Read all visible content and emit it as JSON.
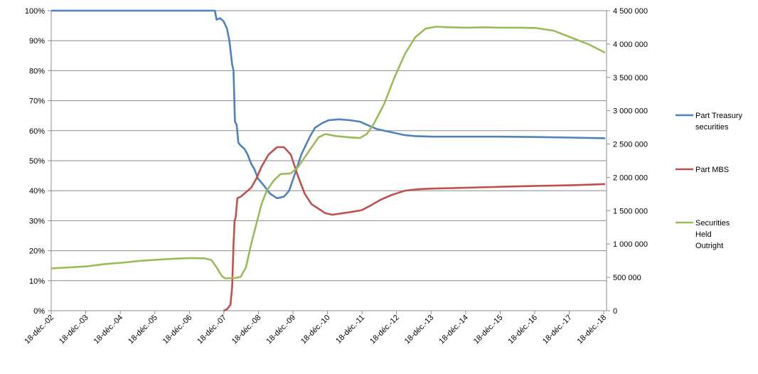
{
  "chart_data": {
    "type": "line",
    "title": "",
    "xlabel": "",
    "ylabel": "",
    "y_left": {
      "lim": [
        0,
        100
      ],
      "ticks": [
        0,
        10,
        20,
        30,
        40,
        50,
        60,
        70,
        80,
        90,
        100
      ],
      "tick_labels": [
        "0%",
        "10%",
        "20%",
        "30%",
        "40%",
        "50%",
        "60%",
        "70%",
        "80%",
        "90%",
        "100%"
      ]
    },
    "y_right": {
      "lim": [
        0,
        4500000
      ],
      "ticks": [
        0,
        500000,
        1000000,
        1500000,
        2000000,
        2500000,
        3000000,
        3500000,
        4000000,
        4500000
      ],
      "tick_labels": [
        "0",
        "500 000",
        "1 000 000",
        "1 500 000",
        "2 000 000",
        "2 500 000",
        "3 000 000",
        "3 500 000",
        "4 000 000",
        "4 500 000"
      ]
    },
    "x_axis": {
      "lim": [
        2002.96,
        2019.04
      ],
      "ticks": [
        2002.96,
        2003.96,
        2004.96,
        2005.96,
        2006.96,
        2007.96,
        2008.96,
        2009.96,
        2010.96,
        2011.96,
        2012.96,
        2013.96,
        2014.96,
        2015.96,
        2016.96,
        2017.96,
        2018.96
      ],
      "tick_labels": [
        "18-déc.-02",
        "18-déc.-03",
        "18-déc.-04",
        "18-déc.-05",
        "18-déc.-06",
        "18-déc.-07",
        "18-déc.-08",
        "18-déc.-09",
        "18-déc.-10",
        "18-déc.-11",
        "18-déc.-12",
        "18-déc.-13",
        "18-déc.-14",
        "18-déc.-15",
        "18-déc.-16",
        "18-déc.-17",
        "18-déc.-18"
      ]
    },
    "grid": "horizontal",
    "legend_position": "right",
    "series": [
      {
        "name": "Part Treasury securities",
        "axis": "left",
        "color": "#4F81BD",
        "points": [
          [
            2002.96,
            100
          ],
          [
            2007.0,
            100
          ],
          [
            2007.7,
            100
          ],
          [
            2007.75,
            97
          ],
          [
            2007.85,
            97.5
          ],
          [
            2007.95,
            96.5
          ],
          [
            2008.05,
            94
          ],
          [
            2008.12,
            90
          ],
          [
            2008.2,
            82
          ],
          [
            2008.24,
            80
          ],
          [
            2008.28,
            63
          ],
          [
            2008.33,
            62
          ],
          [
            2008.38,
            56
          ],
          [
            2008.45,
            55
          ],
          [
            2008.55,
            54
          ],
          [
            2008.65,
            52
          ],
          [
            2008.75,
            49
          ],
          [
            2008.85,
            47
          ],
          [
            2008.95,
            44
          ],
          [
            2009.1,
            42
          ],
          [
            2009.3,
            39
          ],
          [
            2009.5,
            37.5
          ],
          [
            2009.7,
            38
          ],
          [
            2009.85,
            40
          ],
          [
            2010.0,
            45
          ],
          [
            2010.2,
            52
          ],
          [
            2010.45,
            58
          ],
          [
            2010.6,
            61
          ],
          [
            2010.8,
            62.5
          ],
          [
            2011.0,
            63.5
          ],
          [
            2011.3,
            63.8
          ],
          [
            2011.6,
            63.5
          ],
          [
            2011.9,
            63
          ],
          [
            2012.1,
            62
          ],
          [
            2012.4,
            60.5
          ],
          [
            2012.8,
            59.5
          ],
          [
            2013.2,
            58.5
          ],
          [
            2013.5,
            58.2
          ],
          [
            2014.0,
            58
          ],
          [
            2015.0,
            58
          ],
          [
            2016.0,
            58
          ],
          [
            2017.0,
            57.9
          ],
          [
            2018.0,
            57.7
          ],
          [
            2019.0,
            57.5
          ]
        ]
      },
      {
        "name": "Part MBS",
        "axis": "left",
        "color": "#C0504D",
        "points": [
          [
            2007.95,
            0
          ],
          [
            2008.05,
            0.5
          ],
          [
            2008.15,
            2
          ],
          [
            2008.2,
            8
          ],
          [
            2008.24,
            22
          ],
          [
            2008.27,
            30
          ],
          [
            2008.3,
            31
          ],
          [
            2008.35,
            37.5
          ],
          [
            2008.45,
            38
          ],
          [
            2008.6,
            39.5
          ],
          [
            2008.75,
            41
          ],
          [
            2008.9,
            44
          ],
          [
            2009.05,
            48
          ],
          [
            2009.25,
            52
          ],
          [
            2009.5,
            54.5
          ],
          [
            2009.7,
            54.5
          ],
          [
            2009.9,
            52
          ],
          [
            2010.1,
            45
          ],
          [
            2010.3,
            39
          ],
          [
            2010.5,
            35.5
          ],
          [
            2010.7,
            34
          ],
          [
            2010.9,
            32.5
          ],
          [
            2011.1,
            32
          ],
          [
            2011.4,
            32.5
          ],
          [
            2011.7,
            33
          ],
          [
            2011.95,
            33.5
          ],
          [
            2012.2,
            35
          ],
          [
            2012.5,
            37
          ],
          [
            2012.8,
            38.5
          ],
          [
            2013.2,
            40
          ],
          [
            2013.6,
            40.5
          ],
          [
            2014.0,
            40.7
          ],
          [
            2015.0,
            41
          ],
          [
            2016.0,
            41.3
          ],
          [
            2017.0,
            41.6
          ],
          [
            2018.0,
            41.8
          ],
          [
            2019.0,
            42.2
          ]
        ]
      },
      {
        "name": "Securities Held Outright",
        "axis": "right",
        "color": "#9BBB59",
        "points": [
          [
            2002.96,
            635000
          ],
          [
            2003.5,
            650000
          ],
          [
            2004.0,
            665000
          ],
          [
            2004.5,
            700000
          ],
          [
            2005.0,
            720000
          ],
          [
            2005.5,
            745000
          ],
          [
            2006.0,
            765000
          ],
          [
            2006.5,
            780000
          ],
          [
            2007.0,
            790000
          ],
          [
            2007.4,
            785000
          ],
          [
            2007.6,
            760000
          ],
          [
            2007.75,
            650000
          ],
          [
            2007.9,
            520000
          ],
          [
            2008.0,
            485000
          ],
          [
            2008.3,
            490000
          ],
          [
            2008.45,
            510000
          ],
          [
            2008.6,
            650000
          ],
          [
            2008.75,
            1000000
          ],
          [
            2008.9,
            1300000
          ],
          [
            2009.05,
            1600000
          ],
          [
            2009.2,
            1800000
          ],
          [
            2009.4,
            1950000
          ],
          [
            2009.6,
            2050000
          ],
          [
            2009.9,
            2060000
          ],
          [
            2010.1,
            2150000
          ],
          [
            2010.3,
            2300000
          ],
          [
            2010.5,
            2450000
          ],
          [
            2010.7,
            2600000
          ],
          [
            2010.9,
            2650000
          ],
          [
            2011.2,
            2620000
          ],
          [
            2011.6,
            2600000
          ],
          [
            2011.9,
            2590000
          ],
          [
            2012.1,
            2650000
          ],
          [
            2012.3,
            2800000
          ],
          [
            2012.6,
            3100000
          ],
          [
            2012.9,
            3500000
          ],
          [
            2013.2,
            3850000
          ],
          [
            2013.5,
            4100000
          ],
          [
            2013.8,
            4230000
          ],
          [
            2014.1,
            4260000
          ],
          [
            2014.5,
            4250000
          ],
          [
            2015.0,
            4245000
          ],
          [
            2015.5,
            4250000
          ],
          [
            2016.0,
            4245000
          ],
          [
            2016.5,
            4245000
          ],
          [
            2017.0,
            4240000
          ],
          [
            2017.5,
            4200000
          ],
          [
            2018.0,
            4100000
          ],
          [
            2018.5,
            4000000
          ],
          [
            2019.0,
            3870000
          ]
        ]
      }
    ],
    "legend": [
      {
        "lines": [
          "Part Treasury",
          "securities"
        ],
        "color": "#4F81BD"
      },
      {
        "lines": [
          "Part MBS"
        ],
        "color": "#C0504D"
      },
      {
        "lines": [
          "Securities",
          "Held",
          "Outright"
        ],
        "color": "#9BBB59"
      }
    ]
  }
}
